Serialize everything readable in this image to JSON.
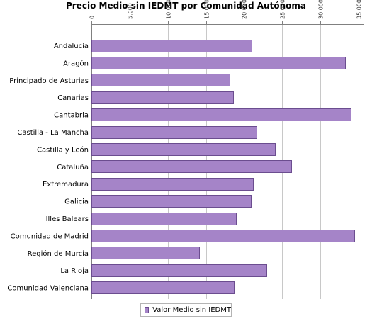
{
  "chart_data": {
    "type": "bar",
    "orientation": "horizontal",
    "title": "Precio Medio sin IEDMT por Comunidad Autónoma",
    "categories": [
      "Andalucía",
      "Aragón",
      "Principado de Asturias",
      "Canarias",
      "Cantabria",
      "Castilla - La Mancha",
      "Castilla y León",
      "Cataluña",
      "Extremadura",
      "Galicia",
      "Illes Balears",
      "Comunidad de Madrid",
      "Región de Murcia",
      "La Rioja",
      "Comunidad Valenciana"
    ],
    "series": [
      {
        "name": "Valor Medio sin IEDMT",
        "values": [
          21000,
          33200,
          18100,
          18600,
          34000,
          21600,
          24000,
          26200,
          21200,
          20900,
          18900,
          34400,
          14100,
          22900,
          18700
        ]
      }
    ],
    "xlim": [
      0,
      35000
    ],
    "ticks": [
      "0",
      "5.000",
      "10.000",
      "15.000",
      "20.000",
      "25.000",
      "30.000",
      "35.000"
    ],
    "tick_values": [
      0,
      5000,
      10000,
      15000,
      20000,
      25000,
      30000,
      35000
    ],
    "axis_position": "top",
    "grid": true,
    "legend_position": "bottom",
    "colors": {
      "bar_fill": "#a584c8",
      "bar_stroke": "#6b4d8f",
      "grid": "#c8c8c8"
    }
  }
}
